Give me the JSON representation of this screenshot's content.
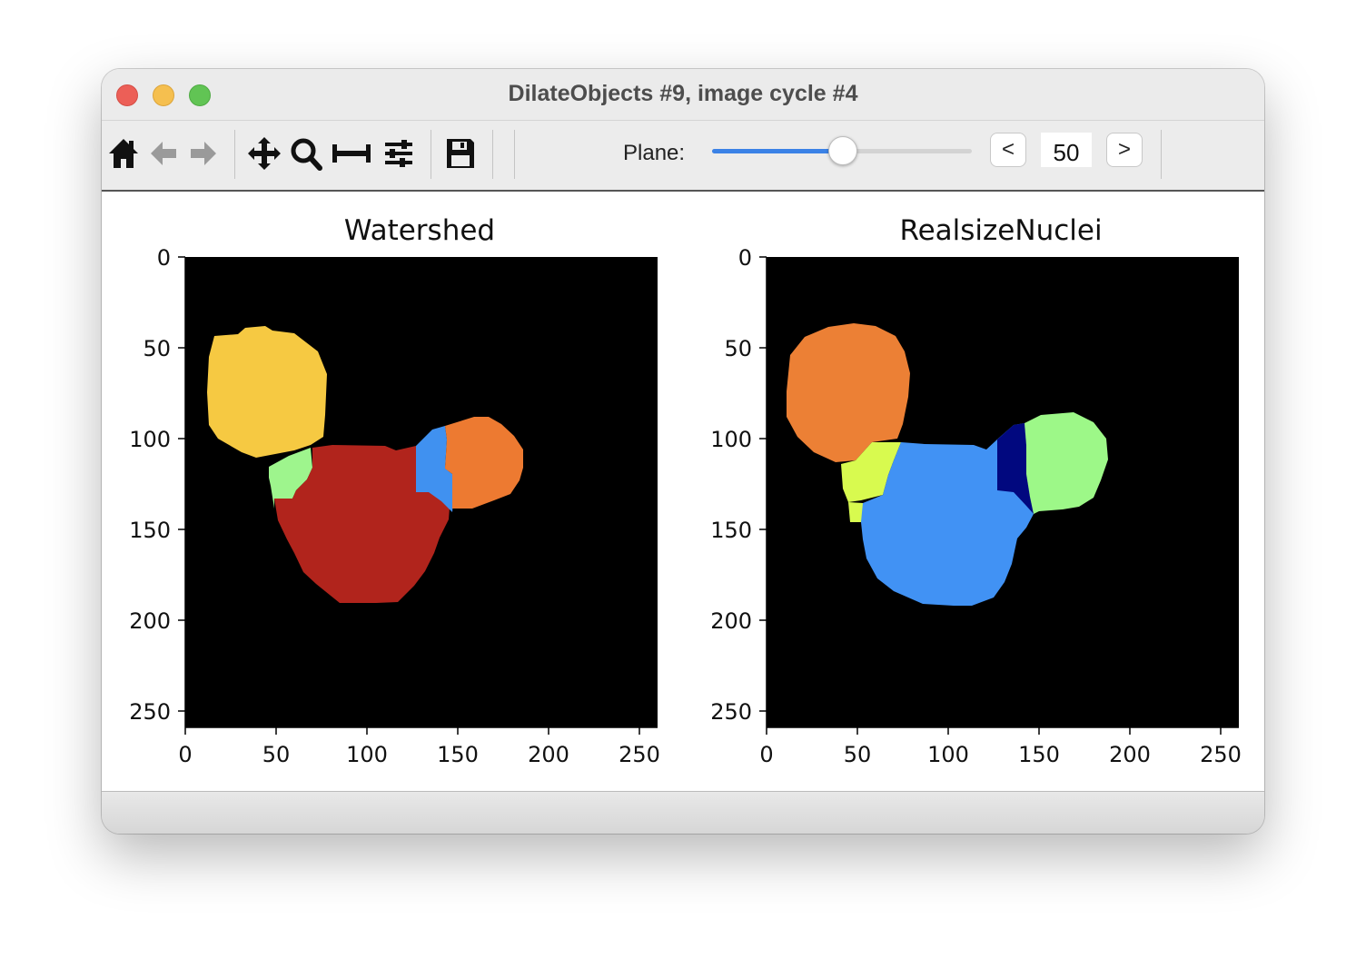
{
  "window": {
    "title": "DilateObjects #9, image cycle #4"
  },
  "toolbar": {
    "icons": [
      "home-icon",
      "back-arrow-icon",
      "forward-arrow-icon",
      "pan-icon",
      "zoom-icon",
      "span-icon",
      "configure-subplots-icon",
      "save-icon"
    ],
    "plane_label": "Plane:",
    "plane_value": "50",
    "plane_fraction": 0.5,
    "prev_label": "<",
    "next_label": ">"
  },
  "colors": {
    "accent": "#3b82e6",
    "yellow": "#f6c942",
    "darkred": "#b1241c",
    "lightgreen": "#9ef58d",
    "blue": "#4091f0",
    "orange": "#ed7a31",
    "realsize_orange": "#ec8035",
    "realsize_blue": "#4192f4",
    "realsize_navy": "#01087f",
    "realsize_green": "#9df888",
    "realsize_lime": "#d8fa4f"
  },
  "plots": [
    {
      "title": "Watershed",
      "y_ticks": [
        "0",
        "50",
        "100",
        "150",
        "200",
        "250"
      ],
      "x_ticks": [
        "0",
        "50",
        "100",
        "150",
        "200",
        "250"
      ]
    },
    {
      "title": "RealsizeNuclei",
      "y_ticks": [
        "0",
        "50",
        "100",
        "150",
        "200",
        "250"
      ],
      "x_ticks": [
        "0",
        "50",
        "100",
        "150",
        "200",
        "250"
      ]
    }
  ]
}
